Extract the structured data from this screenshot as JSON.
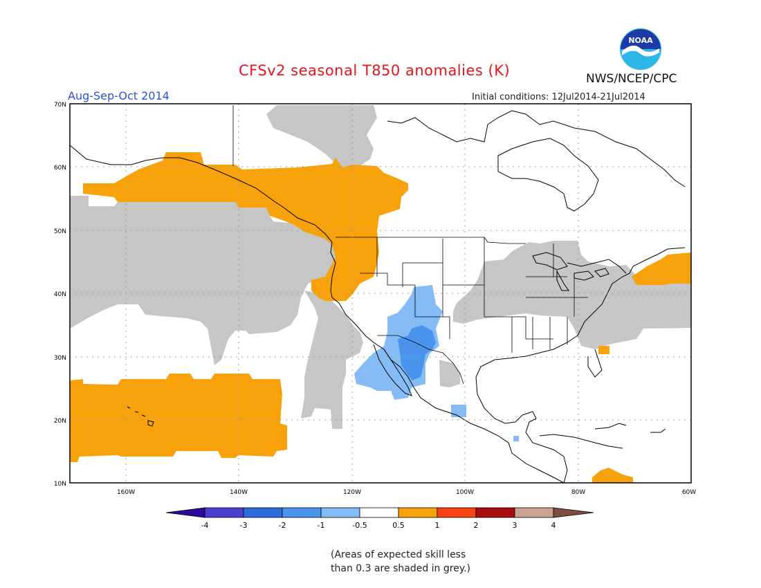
{
  "title": "CFSv2 seasonal T850 anomalies (K)",
  "season": "Aug-Sep-Oct 2014",
  "initial_conditions": "Initial conditions: 12Jul2014-21Jul2014",
  "agency": "NWS/NCEP/CPC",
  "logo_text": "NOAA",
  "map": {
    "region": "North Pacific / North America",
    "lat_labels": [
      "70N",
      "60N",
      "50N",
      "40N",
      "30N",
      "20N",
      "10N"
    ],
    "lon_labels": [
      "160W",
      "140W",
      "120W",
      "100W",
      "80W",
      "60W"
    ]
  },
  "legend": {
    "labels": [
      "-4",
      "-3",
      "-2",
      "-1",
      "-0.5",
      "0.5",
      "1",
      "2",
      "3",
      "4"
    ],
    "colors": [
      "#2b0a9c",
      "#4b3fd0",
      "#2d6cdc",
      "#4a94ee",
      "#86bcf6",
      "#ffffff",
      "#f7a20b",
      "#f84410",
      "#a80d0d",
      "#c9a291",
      "#7e4c40"
    ]
  },
  "colors": {
    "warm": "#f7a20b",
    "cool_light": "#86bcf6",
    "cool": "#4a94ee",
    "low_skill": "#c6c6c6"
  },
  "note_lines": [
    "(Areas of expected skill less",
    "than 0.3 are shaded in grey.)"
  ]
}
